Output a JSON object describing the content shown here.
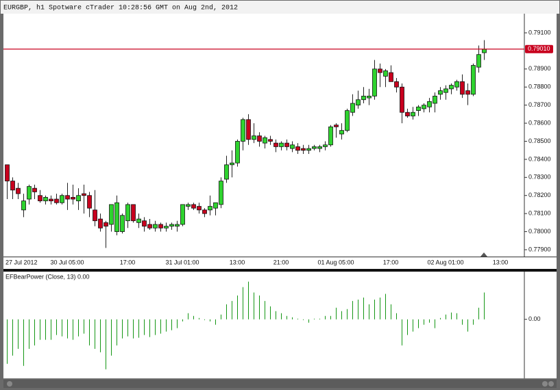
{
  "chart_data": [
    {
      "type": "candlestick",
      "title": "EURGBP, h1 Spotware cTrader 10:28:56 GMT on Aug 2nd, 2012",
      "open": [
        0.7837,
        0.7828,
        0.7824,
        0.7812,
        0.7818,
        0.7824,
        0.782,
        0.7817,
        0.7818,
        0.7818,
        0.7816,
        0.782,
        0.7819,
        0.7817,
        0.7821,
        0.782,
        0.7812,
        0.7807,
        0.7805,
        0.7804,
        0.78,
        0.78,
        0.7806,
        0.7815,
        0.7805,
        0.7806,
        0.7804,
        0.7802,
        0.7804,
        0.7802,
        0.7803,
        0.7803,
        0.7804,
        0.7814,
        0.7815,
        0.7814,
        0.7812,
        0.7812,
        0.7813,
        0.7815,
        0.7829,
        0.7837,
        0.7838,
        0.785,
        0.7862,
        0.7851,
        0.7853,
        0.7849,
        0.7851,
        0.7849,
        0.7847,
        0.7849,
        0.7846,
        0.7847,
        0.7846,
        0.7845,
        0.7846,
        0.7846,
        0.7847,
        0.7848,
        0.7859,
        0.7854,
        0.7856,
        0.7866,
        0.787,
        0.7873,
        0.7874,
        0.7875,
        0.789,
        0.7886,
        0.7888,
        0.7883,
        0.788,
        0.7866,
        0.7864,
        0.7867,
        0.7868,
        0.7869,
        0.7871,
        0.7876,
        0.7877,
        0.7879,
        0.788,
        0.7883,
        0.7878,
        0.7876,
        0.7891,
        0.7899
      ],
      "high": [
        0.7837,
        0.783,
        0.7827,
        0.7821,
        0.7826,
        0.7826,
        0.7823,
        0.782,
        0.782,
        0.7821,
        0.7821,
        0.7827,
        0.7826,
        0.7824,
        0.7826,
        0.7822,
        0.7823,
        0.781,
        0.7806,
        0.7814,
        0.782,
        0.781,
        0.7816,
        0.7815,
        0.781,
        0.7808,
        0.7807,
        0.7806,
        0.7805,
        0.7805,
        0.7805,
        0.7806,
        0.7815,
        0.7816,
        0.7816,
        0.7816,
        0.7813,
        0.782,
        0.7816,
        0.783,
        0.7842,
        0.7845,
        0.7851,
        0.7863,
        0.7865,
        0.786,
        0.7855,
        0.7853,
        0.7853,
        0.7851,
        0.785,
        0.7851,
        0.785,
        0.7849,
        0.7848,
        0.7848,
        0.7848,
        0.7848,
        0.785,
        0.7859,
        0.786,
        0.786,
        0.7868,
        0.7876,
        0.7878,
        0.788,
        0.7879,
        0.7895,
        0.7893,
        0.789,
        0.7892,
        0.7885,
        0.7882,
        0.7868,
        0.7869,
        0.787,
        0.7871,
        0.7874,
        0.7877,
        0.788,
        0.7881,
        0.7882,
        0.7884,
        0.7887,
        0.7882,
        0.7893,
        0.7903,
        0.7906
      ],
      "low": [
        0.7818,
        0.7818,
        0.7818,
        0.7808,
        0.7815,
        0.7818,
        0.7816,
        0.7815,
        0.7815,
        0.7815,
        0.7815,
        0.7812,
        0.7815,
        0.7812,
        0.781,
        0.7808,
        0.7803,
        0.78,
        0.7791,
        0.78,
        0.7798,
        0.7799,
        0.7802,
        0.7805,
        0.7802,
        0.78,
        0.7801,
        0.78,
        0.78,
        0.78,
        0.7801,
        0.78,
        0.7803,
        0.7812,
        0.7812,
        0.781,
        0.7808,
        0.7809,
        0.7809,
        0.7813,
        0.7827,
        0.783,
        0.7836,
        0.7845,
        0.7848,
        0.7849,
        0.7847,
        0.7846,
        0.7848,
        0.7844,
        0.7845,
        0.7845,
        0.7844,
        0.7843,
        0.7843,
        0.7843,
        0.7845,
        0.7844,
        0.7845,
        0.7847,
        0.7852,
        0.7851,
        0.7855,
        0.7864,
        0.7868,
        0.7871,
        0.787,
        0.7873,
        0.788,
        0.788,
        0.7883,
        0.7877,
        0.786,
        0.7863,
        0.7862,
        0.7864,
        0.7866,
        0.7866,
        0.7866,
        0.7873,
        0.7873,
        0.7876,
        0.7878,
        0.7874,
        0.787,
        0.7875,
        0.7888,
        0.7895
      ],
      "close": [
        0.7828,
        0.7823,
        0.7821,
        0.7817,
        0.7825,
        0.7822,
        0.7817,
        0.7819,
        0.7817,
        0.7816,
        0.782,
        0.7818,
        0.7818,
        0.782,
        0.782,
        0.7813,
        0.7806,
        0.7802,
        0.7803,
        0.7815,
        0.7816,
        0.7809,
        0.7815,
        0.7806,
        0.7807,
        0.7803,
        0.7802,
        0.7804,
        0.7802,
        0.7803,
        0.7804,
        0.7804,
        0.7815,
        0.7815,
        0.7813,
        0.7812,
        0.781,
        0.7814,
        0.7816,
        0.7828,
        0.7837,
        0.7838,
        0.785,
        0.7862,
        0.7851,
        0.7853,
        0.785,
        0.7852,
        0.785,
        0.7847,
        0.7849,
        0.7847,
        0.7848,
        0.7845,
        0.7845,
        0.7846,
        0.7847,
        0.7847,
        0.7848,
        0.7858,
        0.7858,
        0.7856,
        0.7867,
        0.7871,
        0.7873,
        0.7875,
        0.7875,
        0.789,
        0.7888,
        0.7889,
        0.7883,
        0.788,
        0.7866,
        0.7864,
        0.7866,
        0.7869,
        0.787,
        0.7872,
        0.7875,
        0.7878,
        0.7879,
        0.7881,
        0.7883,
        0.7876,
        0.7876,
        0.7892,
        0.7898,
        0.7901
      ],
      "up_color": "#2fd32f",
      "down_color": "#c8001e",
      "xlim": [
        -0.625,
        94.375
      ],
      "xticks": [
        {
          "value": 0,
          "label": "27 Jul 2012"
        },
        {
          "value": 11,
          "label": "30 Jul 05:00"
        },
        {
          "value": 22,
          "label": "17:00"
        },
        {
          "value": 32,
          "label": "31 Jul 01:00"
        },
        {
          "value": 42,
          "label": "13:00"
        },
        {
          "value": 50,
          "label": "21:00"
        },
        {
          "value": 60,
          "label": "01 Aug 05:00"
        },
        {
          "value": 70,
          "label": "17:00"
        },
        {
          "value": 80,
          "label": "02 Aug 01:00"
        },
        {
          "value": 90,
          "label": "13:00"
        }
      ],
      "ylim": [
        0.77862,
        0.79206
      ],
      "yticks": [
        {
          "value": 0.791,
          "label": "0.79100"
        },
        {
          "value": 0.789,
          "label": "0.78900"
        },
        {
          "value": 0.788,
          "label": "0.78800"
        },
        {
          "value": 0.787,
          "label": "0.78700"
        },
        {
          "value": 0.786,
          "label": "0.78600"
        },
        {
          "value": 0.785,
          "label": "0.78500"
        },
        {
          "value": 0.784,
          "label": "0.78400"
        },
        {
          "value": 0.783,
          "label": "0.78300"
        },
        {
          "value": 0.782,
          "label": "0.78200"
        },
        {
          "value": 0.781,
          "label": "0.78100"
        },
        {
          "value": 0.78,
          "label": "0.78000"
        },
        {
          "value": 0.779,
          "label": "0.77900"
        }
      ],
      "price_line": {
        "value": 0.7901,
        "label": "0.79010",
        "color": "#c8001e"
      }
    },
    {
      "type": "bar",
      "title": "EFBearPower (Close, 13) 0.00",
      "values": [
        -0.00196,
        -0.0016,
        -0.0013,
        -0.00205,
        -0.0013,
        -0.00115,
        -0.0009,
        -0.0009,
        -0.0009,
        -0.00069,
        -0.00075,
        -0.00084,
        -0.0009,
        -0.00075,
        -0.00063,
        -0.00115,
        -0.0013,
        -0.00145,
        -0.0022,
        -0.0016,
        -0.00115,
        -0.00084,
        -0.00075,
        -0.00084,
        -0.00081,
        -0.00069,
        -0.00078,
        -0.00069,
        -0.00063,
        -0.00054,
        -0.00048,
        -0.00039,
        -9e-05,
        0.00027,
        0.00015,
        6e-05,
        -3e-05,
        -9e-05,
        -0.00024,
        0.00021,
        0.00066,
        0.00081,
        0.00105,
        0.00142,
        0.00166,
        0.00118,
        0.00105,
        0.00081,
        0.00057,
        0.00036,
        0.00027,
        0.00015,
        9e-05,
        3e-05,
        -3e-05,
        -0.00015,
        3e-05,
        3e-05,
        0.00015,
        0.00015,
        0.00051,
        0.00036,
        0.00045,
        0.00081,
        0.00087,
        0.00096,
        0.00066,
        0.00087,
        0.00096,
        0.00112,
        0.00066,
        0.00027,
        -0.00115,
        -0.00069,
        -0.00054,
        -0.00039,
        -0.00024,
        -0.00015,
        -0.00039,
        6e-05,
        0.00021,
        0.0003,
        0.00027,
        -0.00024,
        -0.00054,
        -0.00024,
        0.00051,
        0.00118
      ],
      "color": "#149614",
      "xlim": [
        -0.625,
        94.375
      ],
      "ylim": [
        -0.0026,
        0.0021
      ],
      "yticks": [
        {
          "value": 0,
          "label": "0.00"
        }
      ]
    }
  ]
}
